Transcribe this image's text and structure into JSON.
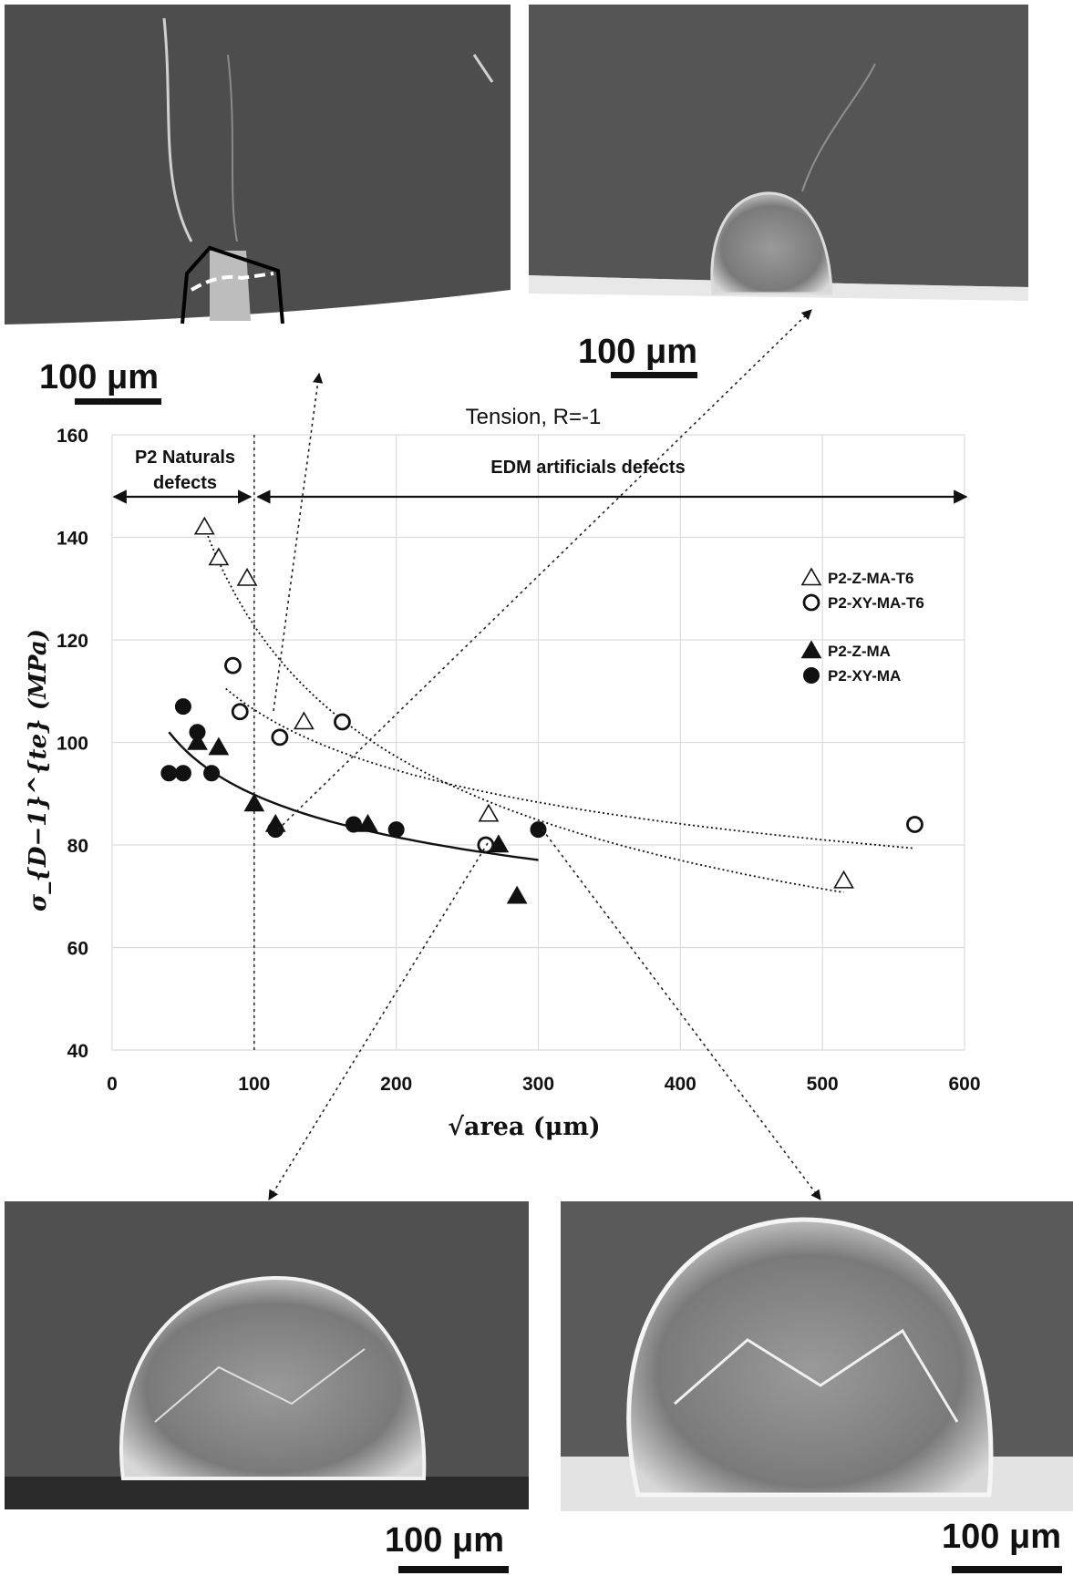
{
  "chart_data": {
    "type": "scatter",
    "title": "Tension, R=-1",
    "xlabel": "√area (μm)",
    "ylabel": "σ_{D−1}^{te} (MPa)",
    "xlim": [
      0,
      600
    ],
    "ylim": [
      40,
      160
    ],
    "x_ticks": [
      "0",
      "100",
      "200",
      "300",
      "400",
      "500",
      "600"
    ],
    "y_ticks": [
      "40",
      "60",
      "80",
      "100",
      "120",
      "140",
      "160"
    ],
    "grid": true,
    "legend_position": "right",
    "series": [
      {
        "name": "P2-Z-MA-T6",
        "marker": "triangle-open",
        "x": [
          65,
          75,
          95,
          135,
          265,
          515
        ],
        "y": [
          142,
          136,
          132,
          104,
          86,
          73
        ]
      },
      {
        "name": "P2-XY-MA-T6",
        "marker": "circle-open",
        "x": [
          85,
          90,
          118,
          162,
          263,
          565
        ],
        "y": [
          115,
          106,
          101,
          104,
          80,
          84
        ]
      },
      {
        "name": "P2-Z-MA",
        "marker": "triangle-filled",
        "x": [
          60,
          75,
          100,
          115,
          180,
          272,
          285
        ],
        "y": [
          100,
          99,
          88,
          84,
          84,
          80,
          70
        ]
      },
      {
        "name": "P2-XY-MA",
        "marker": "circle-filled",
        "x": [
          40,
          50,
          50,
          60,
          70,
          115,
          170,
          200,
          300
        ],
        "y": [
          94,
          94,
          107,
          102,
          94,
          83,
          84,
          83,
          83
        ]
      }
    ],
    "trendlines": [
      {
        "series": "P2-Z-MA-T6",
        "style": "dotted",
        "x_from": 65,
        "x_to": 515
      },
      {
        "series": "P2-XY-MA-T6",
        "style": "dotted",
        "x_from": 80,
        "x_to": 565
      },
      {
        "series": "P2-Z-MA and P2-XY-MA",
        "style": "solid",
        "x_from": 40,
        "x_to": 300
      }
    ],
    "annotations": {
      "natural_defects": [
        "P2 Naturals",
        "defects"
      ],
      "artificial_defects": "EDM artificials defects",
      "boundary_x": 100
    }
  },
  "images": {
    "scale_bar_label": "100 μm"
  }
}
